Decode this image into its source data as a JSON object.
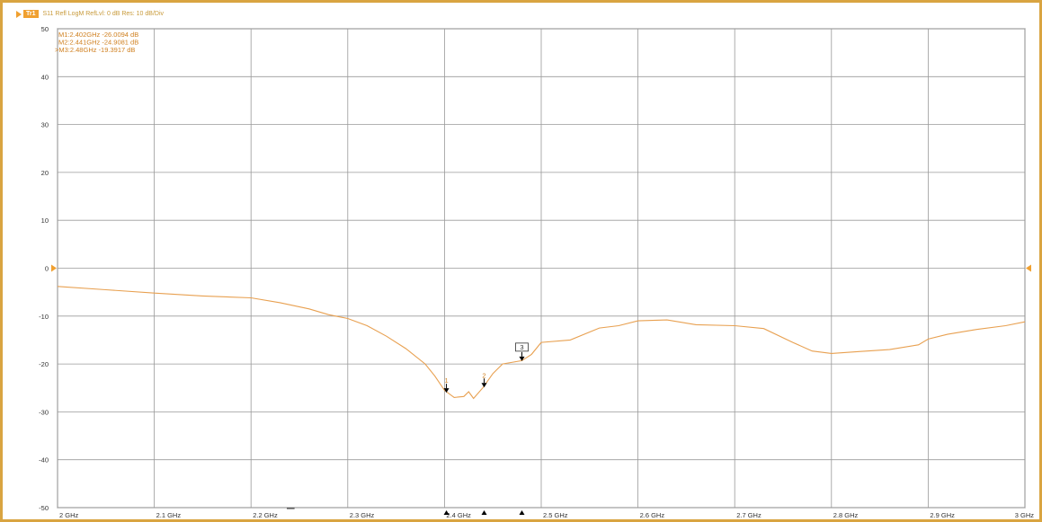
{
  "header": {
    "trace_label": "Tr1",
    "info": "S11 Refl LogM RefLvl: 0  dB Res: 10  dB/Div"
  },
  "colors": {
    "frame": "#d9a441",
    "trace": "#e8a050",
    "grid": "#9a9a9a",
    "marker_text": "#d08020",
    "reference_arrow": "#f0a030"
  },
  "chart_data": {
    "type": "line",
    "title": "",
    "xlabel": "",
    "ylabel": "",
    "xlim": [
      2.0,
      3.0
    ],
    "ylim": [
      -50,
      50
    ],
    "grid": true,
    "x_ticks": [
      2.0,
      2.1,
      2.2,
      2.3,
      2.4,
      2.5,
      2.6,
      2.7,
      2.8,
      2.9,
      3.0
    ],
    "x_tick_labels": [
      "2 GHz",
      "2.1 GHz",
      "2.2 GHz",
      "2.3 GHz",
      "2.4 GHz",
      "2.5 GHz",
      "2.6 GHz",
      "2.7 GHz",
      "2.8 GHz",
      "2.9 GHz",
      "3 GHz"
    ],
    "y_ticks": [
      50,
      40,
      30,
      20,
      10,
      0,
      -10,
      -20,
      -30,
      -40,
      -50
    ],
    "y_tick_labels": [
      "50",
      "40",
      "30",
      "20",
      "10",
      "0",
      "-10",
      "-20",
      "-30",
      "-40",
      "-50"
    ],
    "reference_level": 0,
    "series": [
      {
        "x": [
          2.0,
          2.05,
          2.1,
          2.15,
          2.2,
          2.23,
          2.26,
          2.28,
          2.3,
          2.32,
          2.34,
          2.36,
          2.38,
          2.39,
          2.4,
          2.41,
          2.42,
          2.425,
          2.43,
          2.44,
          2.45,
          2.46,
          2.48,
          2.49,
          2.5,
          2.53,
          2.56,
          2.58,
          2.6,
          2.63,
          2.66,
          2.7,
          2.73,
          2.76,
          2.78,
          2.8,
          2.83,
          2.86,
          2.89,
          2.9,
          2.92,
          2.95,
          2.98,
          3.0
        ],
        "y": [
          -3.8,
          -4.5,
          -5.2,
          -5.8,
          -6.2,
          -7.2,
          -8.5,
          -9.7,
          -10.5,
          -12.0,
          -14.2,
          -16.8,
          -20.0,
          -22.5,
          -25.5,
          -27.0,
          -26.8,
          -25.8,
          -27.2,
          -24.9,
          -22.0,
          -20.0,
          -19.3,
          -18.0,
          -15.5,
          -15.0,
          -12.5,
          -12.0,
          -11.0,
          -10.8,
          -11.8,
          -12.0,
          -12.6,
          -15.5,
          -17.3,
          -17.8,
          -17.4,
          -17.0,
          -16.0,
          -14.8,
          -13.8,
          -12.8,
          -12.0,
          -11.2
        ]
      }
    ],
    "markers": [
      {
        "label": "1",
        "readout": "M1:2.402GHz  -26.0094  dB",
        "x": 2.402,
        "y": -26.0094,
        "active": false
      },
      {
        "label": "2",
        "readout": "M2:2.441GHz  -24.9081  dB",
        "x": 2.441,
        "y": -24.9081,
        "active": false
      },
      {
        "label": "3",
        "readout": "M3:2.48GHz  -19.3917  dB",
        "x": 2.48,
        "y": -19.3917,
        "active": true
      }
    ]
  }
}
